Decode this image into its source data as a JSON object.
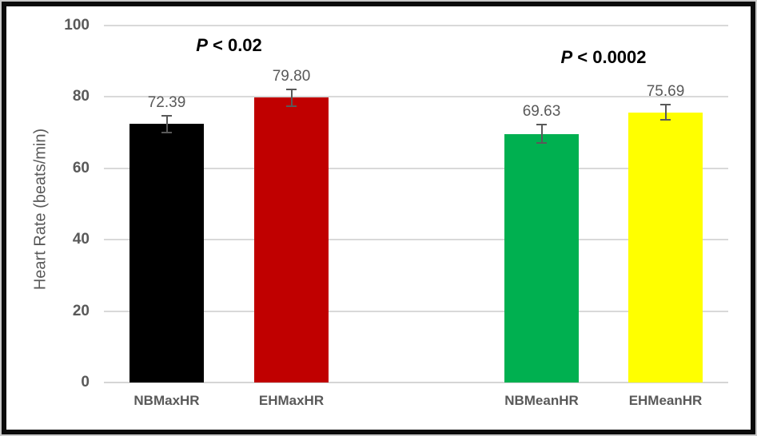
{
  "chart_data": {
    "type": "bar",
    "title": "",
    "xlabel": "",
    "ylabel": "Heart Rate (beats/min)",
    "ylim": [
      0,
      100
    ],
    "yticks": [
      0,
      20,
      40,
      60,
      80,
      100
    ],
    "ytick_labels": [
      "0",
      "20",
      "40",
      "60",
      "80",
      "100"
    ],
    "grid": true,
    "legend": false,
    "categories": [
      "NBMaxHR",
      "EHMaxHR",
      "NBMeanHR",
      "EHMeanHR"
    ],
    "values": [
      72.39,
      79.8,
      69.63,
      75.69
    ],
    "value_labels": [
      "72.39",
      "79.80",
      "69.63",
      "75.69"
    ],
    "errors": [
      2.3,
      2.3,
      2.6,
      2.1
    ],
    "bar_colors": [
      "#000000",
      "#C00000",
      "#00B050",
      "#FFFF00"
    ],
    "annotations": [
      {
        "full_text": "P < 0.02",
        "italic_part": "P",
        "rest": " < 0.02",
        "span_bars": [
          0,
          1
        ]
      },
      {
        "full_text": "P < 0.0002",
        "italic_part": "P",
        "rest": " < 0.0002",
        "span_bars": [
          2,
          3
        ]
      }
    ]
  },
  "styles": {
    "grid_color": "#D9D9D9",
    "axis_text_color": "#595959",
    "data_label_color": "#595959",
    "error_bar_color": "#595959",
    "annotation_color": "#000000",
    "frame_border_color": "#0B0B0B",
    "background_color": "#FFFFFF"
  }
}
